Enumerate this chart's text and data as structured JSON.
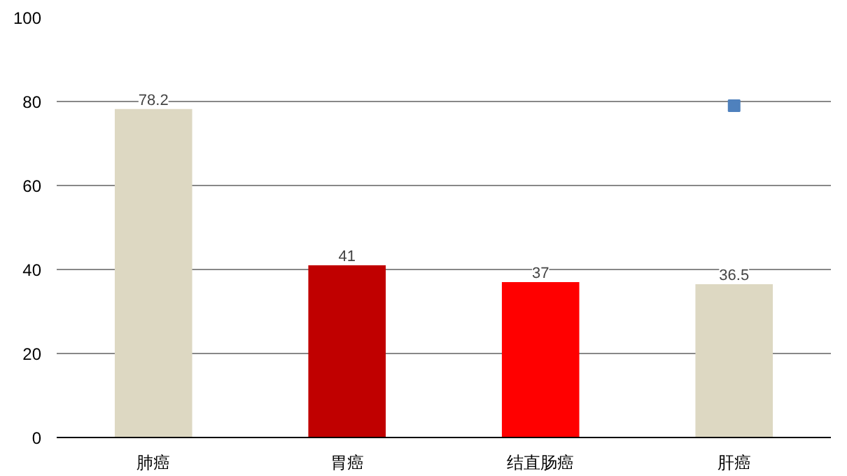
{
  "chart_data": {
    "type": "bar",
    "categories": [
      "肺癌",
      "胃癌",
      "结直肠癌",
      "肝癌"
    ],
    "series": [
      {
        "colors": [
          "#ddd8c2",
          "#c00000",
          "#ff0000",
          "#ddd8c2"
        ],
        "values": [
          78.2,
          41,
          37,
          36.5
        ],
        "value_labels": [
          "78.2",
          "41",
          "37",
          "36.5"
        ]
      },
      {
        "type": "scatter",
        "x": [
          "肝癌"
        ],
        "values": [
          79
        ],
        "color": "#4f81bd",
        "marker": "square"
      }
    ],
    "ylim": [
      0,
      100
    ],
    "yticks": [
      0,
      20,
      40,
      60,
      80,
      100
    ],
    "grid": "y"
  }
}
